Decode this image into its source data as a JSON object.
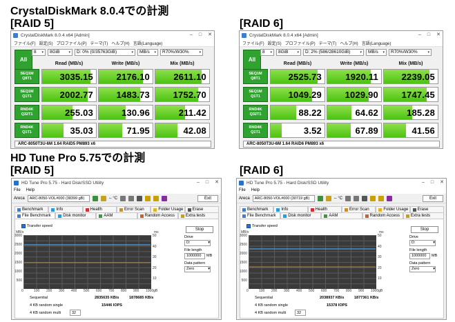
{
  "headings": {
    "cdm_raid5_title": "CrystalDiskMark 8.0.4での計測",
    "cdm_raid5": "[RAID 5]",
    "cdm_raid6": "[RAID 6]",
    "hd_raid5_title": "HD Tune Pro 5.75での計測",
    "hd_raid5": "[RAID 5]",
    "hd_raid6": "[RAID 6]"
  },
  "cdm": {
    "title": "CrystalDiskMark 8.0.4 x64 [Admin]",
    "menu": [
      "ファイル(F)",
      "設定(S)",
      "プロファイル(P)",
      "テーマ(T)",
      "ヘルプ(H)",
      "言語(Language)"
    ],
    "all": "All",
    "count": "8",
    "size": "8GiB",
    "unit": "MB/s",
    "profile": "R70%/W30%",
    "headers": {
      "read": "Read (MB/s)",
      "write": "Write (MB/s)",
      "mix": "Mix (MB/s)"
    },
    "rows": [
      {
        "l1": "SEQ1M",
        "l2": "Q8T1"
      },
      {
        "l1": "SEQ1M",
        "l2": "Q1T1"
      },
      {
        "l1": "RND4K",
        "l2": "Q32T1"
      },
      {
        "l1": "RND4K",
        "l2": "Q1T1"
      }
    ],
    "raid5": {
      "drive": "D: 0% (0/35763GiB)",
      "comment": "ARC-8050T3U-6M 1.64 RAID5 PM893 x6",
      "values": [
        [
          "3035.15",
          "2176.10",
          "2611.10"
        ],
        [
          "2002.77",
          "1483.73",
          "1752.70"
        ],
        [
          "255.03",
          "130.96",
          "211.42"
        ],
        [
          "35.03",
          "71.95",
          "42.08"
        ]
      ],
      "fill": [
        [
          0.9,
          0.82,
          0.86
        ],
        [
          0.84,
          0.77,
          0.8
        ],
        [
          0.56,
          0.5,
          0.55
        ],
        [
          0.4,
          0.44,
          0.41
        ]
      ]
    },
    "raid6": {
      "drive": "D: 2% (586/28610GiB)",
      "comment": "ARC-8050T3U-6M 1.64 RAID6 PM893 x6",
      "values": [
        [
          "2525.73",
          "1920.11",
          "2239.05"
        ],
        [
          "1049.29",
          "1029.90",
          "1747.45"
        ],
        [
          "88.22",
          "64.62",
          "185.28"
        ],
        [
          "3.52",
          "67.89",
          "41.56"
        ]
      ],
      "fill": [
        [
          0.87,
          0.81,
          0.84
        ],
        [
          0.77,
          0.77,
          0.8
        ],
        [
          0.47,
          0.45,
          0.53
        ],
        [
          0.2,
          0.44,
          0.41
        ]
      ]
    }
  },
  "hdtune": {
    "title": "HD Tune Pro 5.75 - Hard Disk/SSD Utility",
    "menu": [
      "File",
      "Help"
    ],
    "vendor": "Areca",
    "exit": "Exit",
    "temp": "-- °C",
    "tabs_top": [
      "Benchmark",
      "Info",
      "Health",
      "Error Scan",
      "Folder Usage",
      "Erase"
    ],
    "tabs_bot": [
      "File Benchmark",
      "Disk monitor",
      "AAM",
      "Random Access",
      "Extra tests"
    ],
    "transfer": "Transfer speed",
    "stop": "Stop",
    "drive_label": "Drive",
    "drive_val": "D:",
    "filelen_label": "File length",
    "filelen_val": "1000000",
    "mb": "MB",
    "pattern_label": "Data pattern",
    "pattern_val": "Zero",
    "yunit": "MB/s",
    "msunit": "ms",
    "yticks": [
      "3000",
      "2500",
      "2000",
      "1500",
      "1000",
      "500"
    ],
    "msticks": [
      "50",
      "40",
      "30",
      "20",
      "10"
    ],
    "xticks": [
      "0",
      "100",
      "200",
      "300",
      "400",
      "500",
      "600",
      "700",
      "800",
      "900",
      "1000gB"
    ],
    "results_labels": [
      "Sequential",
      "4 KB random single",
      "4 KB random multi"
    ],
    "qd": "32",
    "raid5": {
      "drive": "ARC-8050-VOL#000 (38399 gB)",
      "read": "2835635 KB/s",
      "write": "1878685 KB/s",
      "iops": "15446 IOPS"
    },
    "raid6": {
      "drive": "ARC-8050-VOL#000 (30719 gB)",
      "read": "2038937 KB/s",
      "write": "1877361 KB/s",
      "iops": "15378 IOPS"
    }
  }
}
